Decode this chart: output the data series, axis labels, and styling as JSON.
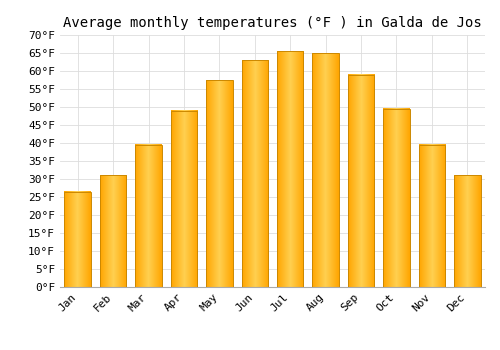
{
  "title": "Average monthly temperatures (°F ) in Galda de Jos",
  "months": [
    "Jan",
    "Feb",
    "Mar",
    "Apr",
    "May",
    "Jun",
    "Jul",
    "Aug",
    "Sep",
    "Oct",
    "Nov",
    "Dec"
  ],
  "values": [
    26.5,
    31.0,
    39.5,
    49.0,
    57.5,
    63.0,
    65.5,
    65.0,
    59.0,
    49.5,
    39.5,
    31.0
  ],
  "bar_color_main": "#FFA500",
  "bar_color_light": "#FFD050",
  "bar_color_edge": "#CC8800",
  "ylim": [
    0,
    70
  ],
  "yticks": [
    0,
    5,
    10,
    15,
    20,
    25,
    30,
    35,
    40,
    45,
    50,
    55,
    60,
    65,
    70
  ],
  "ytick_labels": [
    "0°F",
    "5°F",
    "10°F",
    "15°F",
    "20°F",
    "25°F",
    "30°F",
    "35°F",
    "40°F",
    "45°F",
    "50°F",
    "55°F",
    "60°F",
    "65°F",
    "70°F"
  ],
  "grid_color": "#dddddd",
  "background_color": "#ffffff",
  "title_fontsize": 10,
  "tick_fontsize": 8,
  "font_family": "monospace"
}
